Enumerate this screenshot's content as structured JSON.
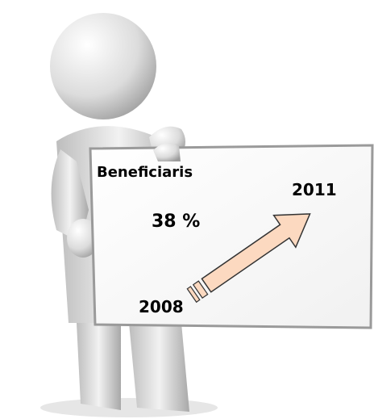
{
  "board": {
    "title": "Beneficiaris",
    "value": "38 %",
    "end_year": "2011",
    "start_year": "2008"
  }
}
